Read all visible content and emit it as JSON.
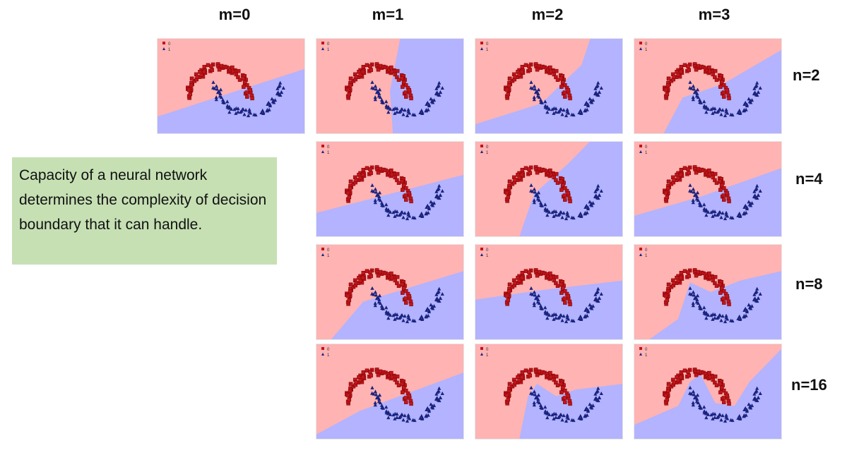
{
  "columns": [
    "m=0",
    "m=1",
    "m=2",
    "m=3"
  ],
  "rows": [
    "n=2",
    "n=4",
    "n=8",
    "n=16"
  ],
  "caption": "Capacity of a neural network determines the complexity of decision boundary that it can handle.",
  "legend": {
    "class0": "0",
    "class1": "1"
  },
  "colors": {
    "region_class0": "#ffb3b3",
    "region_class1": "#b3b3ff",
    "points_class0": "#c0151b",
    "points_class1": "#1a237e",
    "caption_bg": "#c6e0b4"
  },
  "panels": [
    {
      "row": 0,
      "col": 0,
      "boundary": [
        [
          0,
          0.82
        ],
        [
          1,
          0.32
        ]
      ]
    },
    {
      "row": 0,
      "col": 1,
      "boundary": [
        [
          0.52,
          1
        ],
        [
          0.5,
          0.55
        ],
        [
          0.57,
          0
        ]
      ]
    },
    {
      "row": 0,
      "col": 2,
      "boundary": [
        [
          0,
          0.9
        ],
        [
          0.45,
          0.68
        ],
        [
          0.72,
          0.28
        ],
        [
          0.78,
          0
        ]
      ]
    },
    {
      "row": 0,
      "col": 3,
      "boundary": [
        [
          0.2,
          1
        ],
        [
          0.33,
          0.62
        ],
        [
          0.6,
          0.48
        ],
        [
          1,
          0.12
        ]
      ]
    },
    {
      "row": 1,
      "col": 1,
      "boundary": [
        [
          0,
          0.75
        ],
        [
          1,
          0.35
        ]
      ]
    },
    {
      "row": 1,
      "col": 2,
      "boundary": [
        [
          0.3,
          1
        ],
        [
          0.4,
          0.55
        ],
        [
          0.62,
          0.25
        ],
        [
          0.78,
          0
        ]
      ]
    },
    {
      "row": 1,
      "col": 3,
      "boundary": [
        [
          0,
          0.78
        ],
        [
          0.45,
          0.58
        ],
        [
          1,
          0.28
        ]
      ]
    },
    {
      "row": 2,
      "col": 1,
      "boundary": [
        [
          0.1,
          1
        ],
        [
          0.32,
          0.6
        ],
        [
          1,
          0.28
        ]
      ]
    },
    {
      "row": 2,
      "col": 2,
      "boundary": [
        [
          0,
          0.58
        ],
        [
          0.45,
          0.48
        ],
        [
          1,
          0.38
        ]
      ]
    },
    {
      "row": 2,
      "col": 3,
      "boundary": [
        [
          0.1,
          1
        ],
        [
          0.3,
          0.78
        ],
        [
          0.38,
          0.4
        ],
        [
          0.52,
          0.5
        ],
        [
          0.72,
          0.38
        ],
        [
          1,
          0.28
        ]
      ]
    },
    {
      "row": 3,
      "col": 1,
      "boundary": [
        [
          0,
          0.95
        ],
        [
          0.3,
          0.7
        ],
        [
          1,
          0.3
        ]
      ]
    },
    {
      "row": 3,
      "col": 2,
      "boundary": [
        [
          0.3,
          1
        ],
        [
          0.36,
          0.55
        ],
        [
          0.42,
          0.42
        ],
        [
          0.55,
          0.55
        ],
        [
          0.68,
          0.48
        ],
        [
          1,
          0.42
        ]
      ]
    },
    {
      "row": 3,
      "col": 3,
      "boundary": [
        [
          0,
          0.85
        ],
        [
          0.3,
          0.65
        ],
        [
          0.38,
          0.4
        ],
        [
          0.45,
          0.32
        ],
        [
          0.55,
          0.62
        ],
        [
          0.68,
          0.65
        ],
        [
          0.78,
          0.4
        ],
        [
          1,
          0.05
        ]
      ]
    }
  ]
}
